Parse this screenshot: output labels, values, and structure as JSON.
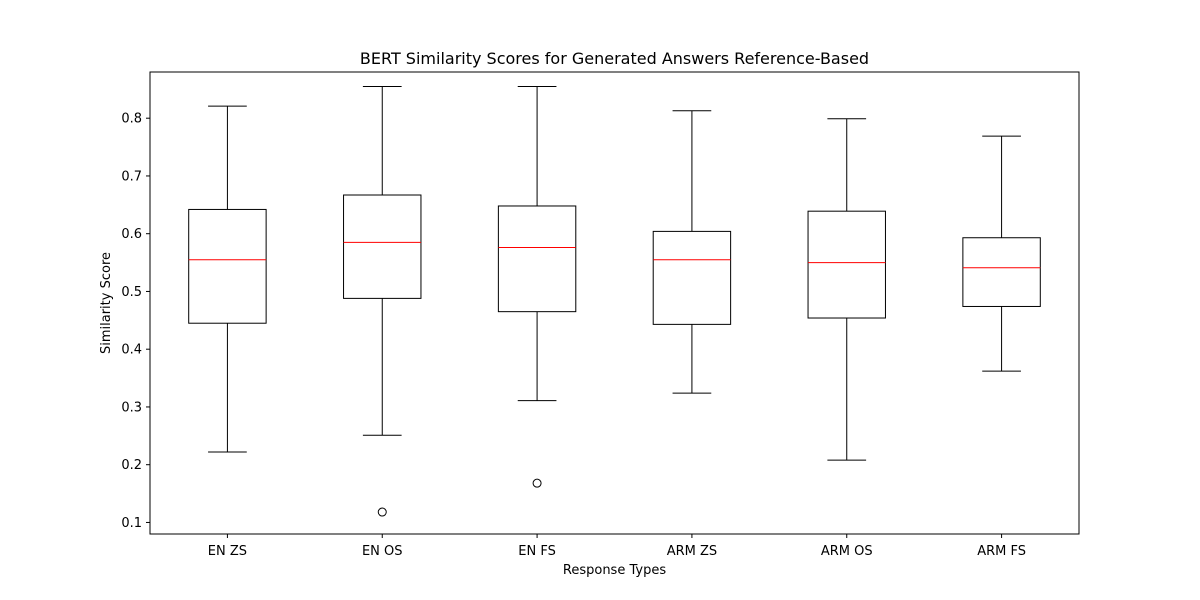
{
  "chart_data": {
    "type": "box",
    "title": "BERT Similarity Scores for Generated Answers Reference-Based",
    "xlabel": "Response Types",
    "ylabel": "Similarity Score",
    "ylim": [
      0.08,
      0.88
    ],
    "yticks": [
      "0.1",
      "0.2",
      "0.3",
      "0.4",
      "0.5",
      "0.6",
      "0.7",
      "0.8"
    ],
    "grid": false,
    "colors": {
      "box": "#000000",
      "median": "#ff0000",
      "outlier": "#000000"
    },
    "categories": [
      "EN ZS",
      "EN OS",
      "EN FS",
      "ARM ZS",
      "ARM OS",
      "ARM FS"
    ],
    "boxes": [
      {
        "label": "EN ZS",
        "whislo": 0.222,
        "q1": 0.445,
        "median": 0.555,
        "q3": 0.642,
        "whishi": 0.821,
        "fliers": []
      },
      {
        "label": "EN OS",
        "whislo": 0.251,
        "q1": 0.488,
        "median": 0.585,
        "q3": 0.667,
        "whishi": 0.855,
        "fliers": [
          0.118
        ]
      },
      {
        "label": "EN FS",
        "whislo": 0.311,
        "q1": 0.465,
        "median": 0.576,
        "q3": 0.648,
        "whishi": 0.855,
        "fliers": [
          0.168
        ]
      },
      {
        "label": "ARM ZS",
        "whislo": 0.324,
        "q1": 0.443,
        "median": 0.555,
        "q3": 0.604,
        "whishi": 0.813,
        "fliers": []
      },
      {
        "label": "ARM OS",
        "whislo": 0.208,
        "q1": 0.454,
        "median": 0.55,
        "q3": 0.639,
        "whishi": 0.799,
        "fliers": []
      },
      {
        "label": "ARM FS",
        "whislo": 0.362,
        "q1": 0.474,
        "median": 0.541,
        "q3": 0.593,
        "whishi": 0.769,
        "fliers": []
      }
    ]
  }
}
